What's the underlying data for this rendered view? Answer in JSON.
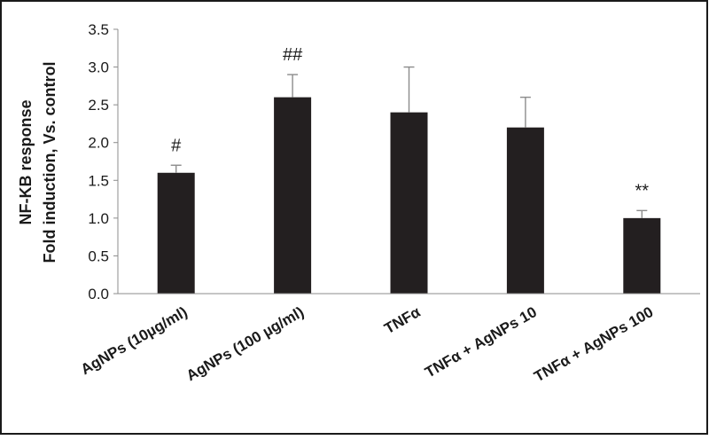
{
  "chart_data": {
    "type": "bar",
    "categories": [
      "AgNPs (10µg/ml)",
      "AgNPs (100  µg/ml)",
      "TNFα",
      "TNFα + AgNPs 10",
      "TNFα + AgNPs 100"
    ],
    "values": [
      1.6,
      2.6,
      2.4,
      2.2,
      1.0
    ],
    "errors": [
      0.1,
      0.3,
      0.6,
      0.4,
      0.1
    ],
    "annotations": [
      "#",
      "##",
      "",
      "",
      "**"
    ],
    "ylabel_lines": [
      "NF-KB response",
      "Fold induction, Vs. control"
    ],
    "ylim": [
      0,
      3.5
    ],
    "yticks": [
      0,
      0.5,
      1.0,
      1.5,
      2.0,
      2.5,
      3.0,
      3.5
    ],
    "ytick_labels": [
      "0.0",
      "0.5",
      "1.0",
      "1.5",
      "2.0",
      "2.5",
      "3.0",
      "3.5"
    ],
    "grid": false,
    "bar_color": "#231f20"
  }
}
